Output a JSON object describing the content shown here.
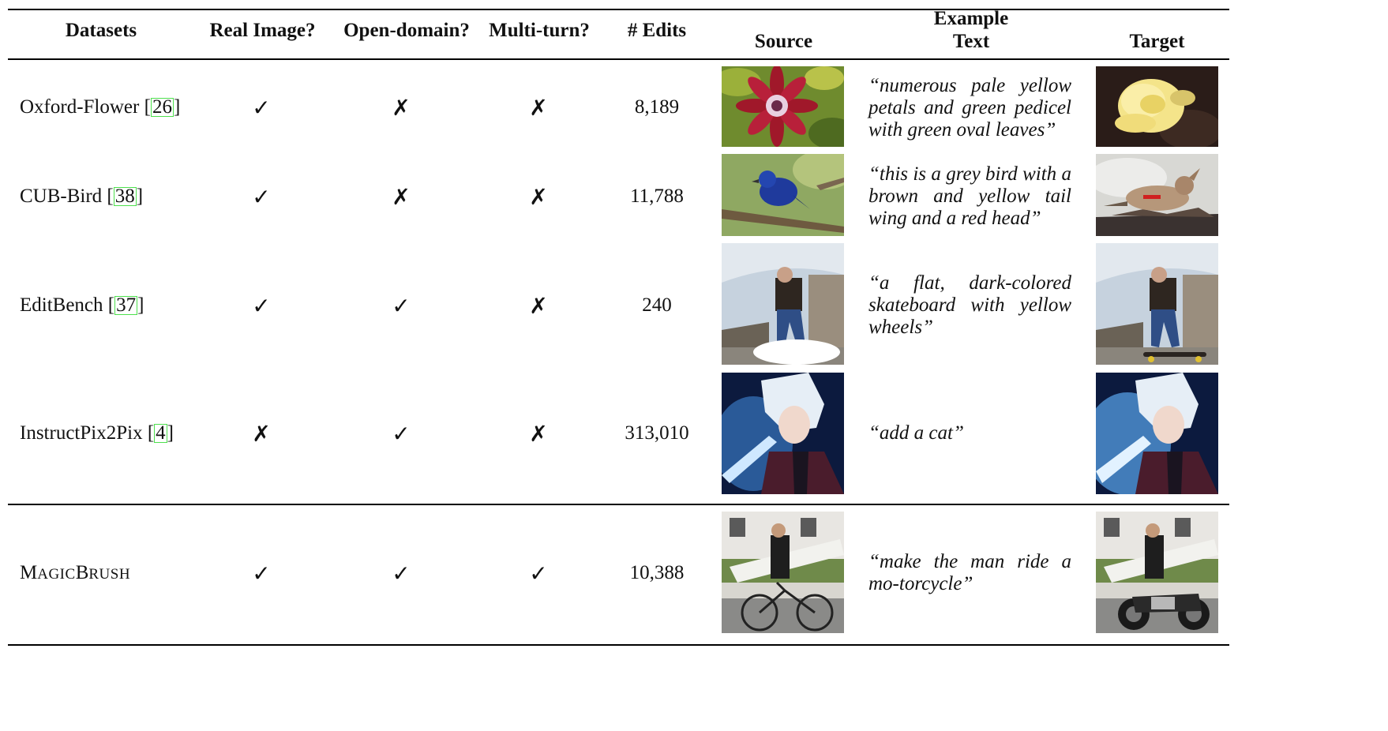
{
  "headers": {
    "datasets": "Datasets",
    "real_image": "Real Image?",
    "open_domain": "Open-domain?",
    "multi_turn": "Multi-turn?",
    "edits": "# Edits",
    "example_group": "Example",
    "source": "Source",
    "text": "Text",
    "target": "Target"
  },
  "rows": [
    {
      "name": "Oxford-Flower [",
      "cite": "26",
      "close": "]",
      "real": "✓",
      "open": "✗",
      "multi": "✗",
      "edits": "8,189",
      "text": "“numerous pale yellow petals and green pedicel with green oval leaves”"
    },
    {
      "name": "CUB-Bird [",
      "cite": "38",
      "close": "]",
      "real": "✓",
      "open": "✗",
      "multi": "✗",
      "edits": "11,788",
      "text": "“this is a grey bird with a brown and yellow tail wing and a red head”"
    },
    {
      "name": "EditBench [",
      "cite": "37",
      "close": "]",
      "real": "✓",
      "open": "✓",
      "multi": "✗",
      "edits": "240",
      "text": "“a flat, dark-colored skateboard with yellow wheels”"
    },
    {
      "name": "InstructPix2Pix [",
      "cite": "4",
      "close": "]",
      "real": "✗",
      "open": "✓",
      "multi": "✗",
      "edits": "313,010",
      "text": "“add a cat”"
    },
    {
      "name_parts": [
        "M",
        "AGIC",
        "B",
        "RUSH"
      ],
      "real": "✓",
      "open": "✓",
      "multi": "✓",
      "edits": "10,388",
      "text": "“make the man ride a mo-torcycle”"
    }
  ]
}
